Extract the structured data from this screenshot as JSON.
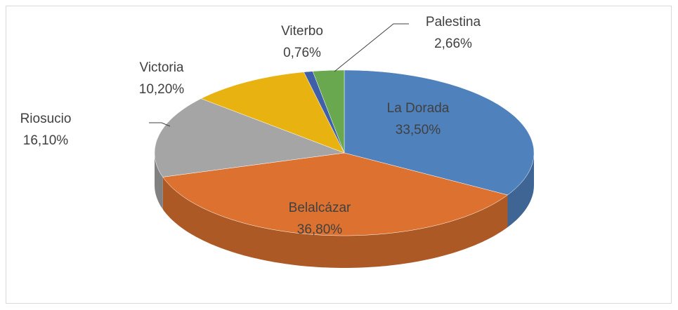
{
  "chart_data": {
    "type": "pie",
    "categories": [
      "La Dorada",
      "Belalcázar",
      "Riosucio",
      "Victoria",
      "Viterbo",
      "Palestina"
    ],
    "values": [
      33.5,
      36.8,
      16.1,
      10.2,
      0.76,
      2.66
    ],
    "value_labels": [
      "33,50%",
      "36,80%",
      "16,10%",
      "10,20%",
      "0,76%",
      "2,66%"
    ],
    "colors": [
      "#4f81bd",
      "#dd7230",
      "#a5a5a5",
      "#e8b310",
      "#3f5fa8",
      "#6aa84f"
    ]
  }
}
